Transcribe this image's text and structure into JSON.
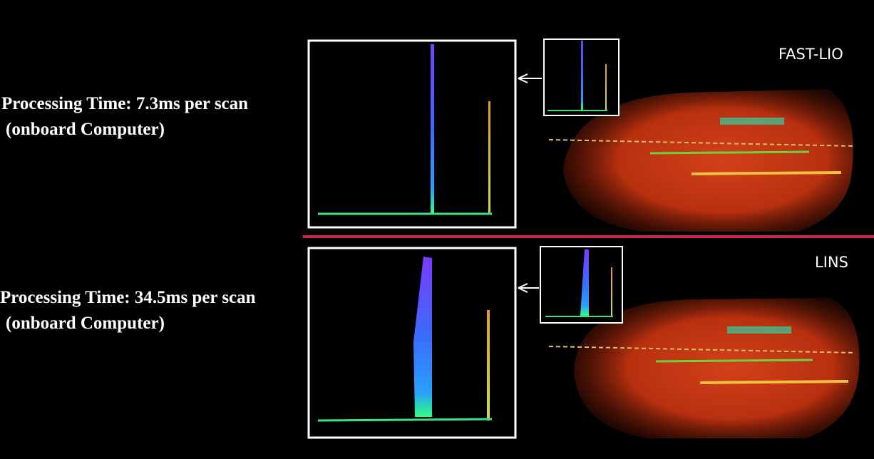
{
  "panels": [
    {
      "method": "FAST-LIO",
      "processing_time": "Processing Time: 7.3ms per scan",
      "platform": "(onboard Computer)"
    },
    {
      "method": "LINS",
      "processing_time": "Processing Time: 34.5ms per scan",
      "platform": "(onboard Computer)"
    }
  ]
}
